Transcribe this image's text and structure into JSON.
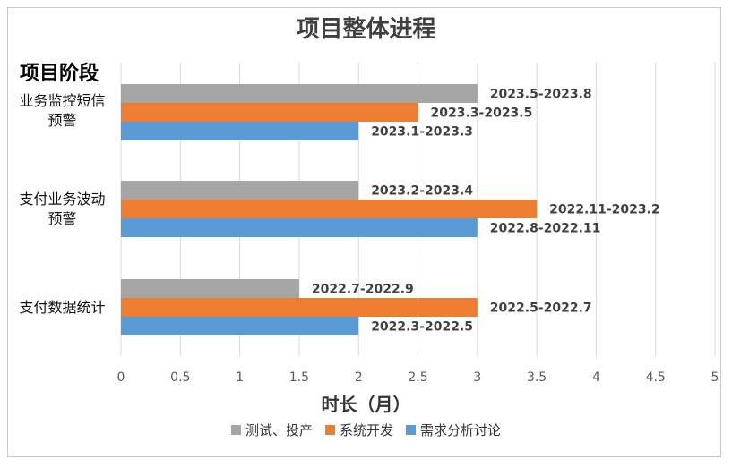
{
  "chart_data": {
    "type": "bar",
    "orientation": "horizontal",
    "title": "项目整体进程",
    "category_header": "项目阶段",
    "xlabel": "时长（月）",
    "xlim": [
      0,
      5
    ],
    "xticks": [
      "0",
      "0.5",
      "1",
      "1.5",
      "2",
      "2.5",
      "3",
      "3.5",
      "4",
      "4.5",
      "5"
    ],
    "grid": true,
    "legend_position": "bottom",
    "categories": [
      {
        "line1": "业务监控短信",
        "line2": "预警"
      },
      {
        "line1": "支付业务波动",
        "line2": "预警"
      },
      {
        "line1": "支付数据统计",
        "line2": ""
      }
    ],
    "series": [
      {
        "name": "测试、投产",
        "color": "#a5a5a5",
        "values": [
          3,
          2,
          1.5
        ],
        "labels": [
          "2023.5-2023.8",
          "2023.2-2023.4",
          "2022.7-2022.9"
        ]
      },
      {
        "name": "系统开发",
        "color": "#ed7d31",
        "values": [
          2.5,
          3.5,
          3
        ],
        "labels": [
          "2023.3-2023.5",
          "2022.11-2023.2",
          "2022.5-2022.7"
        ]
      },
      {
        "name": "需求分析讨论",
        "color": "#5b9bd5",
        "values": [
          2,
          3,
          2
        ],
        "labels": [
          "2023.1-2023.3",
          "2022.8-2022.11",
          "2022.3-2022.5"
        ]
      }
    ]
  }
}
